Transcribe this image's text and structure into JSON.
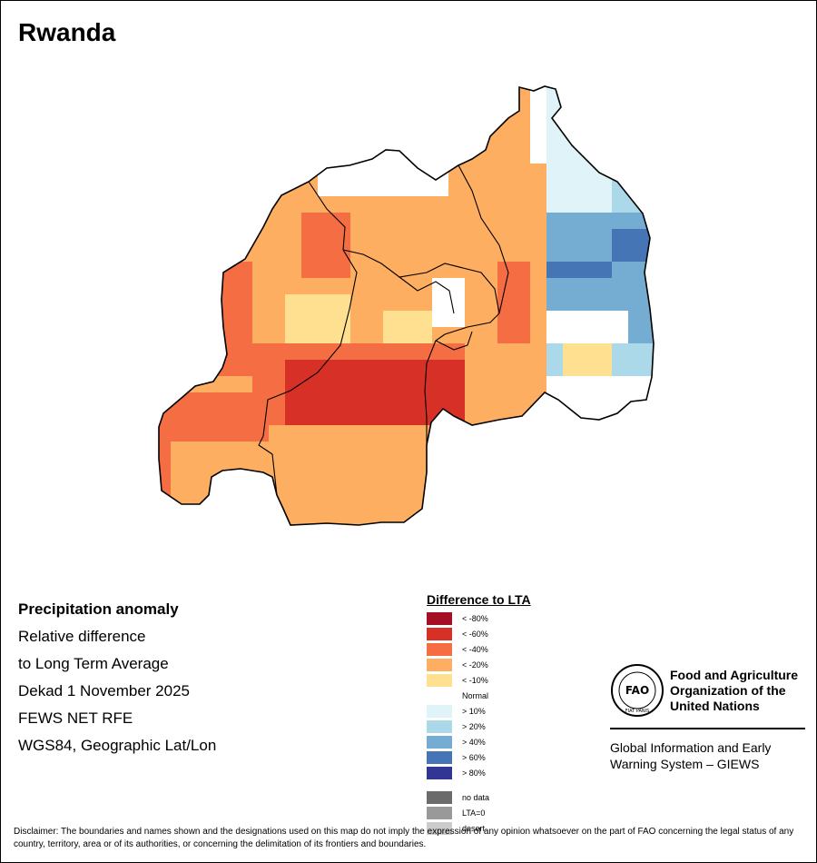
{
  "title": "Rwanda",
  "info": {
    "line1": "Precipitation anomaly",
    "line2": "Relative difference",
    "line3": "to Long Term Average",
    "line4": "Dekad 1 November 2025",
    "line5": "FEWS NET RFE",
    "line6": "WGS84, Geographic Lat/Lon"
  },
  "legend": {
    "title": "Difference to LTA",
    "items": [
      {
        "label": "< -80%",
        "color": "#a50f26"
      },
      {
        "label": "< -60%",
        "color": "#d73027"
      },
      {
        "label": "< -40%",
        "color": "#f46d43"
      },
      {
        "label": "< -20%",
        "color": "#fdae61"
      },
      {
        "label": "< -10%",
        "color": "#fee090"
      },
      {
        "label": "Normal",
        "color": "#ffffff"
      },
      {
        "label": "> 10%",
        "color": "#e0f3f8"
      },
      {
        "label": "> 20%",
        "color": "#abd9e9"
      },
      {
        "label": "> 40%",
        "color": "#74add1"
      },
      {
        "label": "> 60%",
        "color": "#4575b4"
      },
      {
        "label": "> 80%",
        "color": "#313695"
      }
    ],
    "extra": [
      {
        "label": "no data",
        "color": "#6b6b6b"
      },
      {
        "label": "LTA=0",
        "color": "#999999"
      },
      {
        "label": "desert",
        "color": "#cccccc"
      }
    ]
  },
  "logo": {
    "acronym": "FAO",
    "motto": "FIAT PANIS",
    "org_line1": "Food and Agriculture",
    "org_line2": "Organization of the",
    "org_line3": "United Nations",
    "giews_line1": "Global Information and Early",
    "giews_line2": "Warning System – GIEWS"
  },
  "disclaimer": "Disclaimer: The boundaries and names shown and the designations used on this map do not imply the expression of any opinion whatsoever on the part of FAO concerning the legal status of any country, territory, area or of its authorities, or concerning the delimitation of its frontiers and boundaries.",
  "map": {
    "palette": {
      "1": "#d73027",
      "2": "#f46d43",
      "3": "#fdae61",
      "4": "#fee090",
      "5": "#ffffff",
      "6": "#e0f3f8",
      "7": "#abd9e9",
      "8": "#74add1",
      "9": "#4575b4"
    },
    "grid": [
      "...................................",
      "...................................",
      "...................................",
      "...................................",
      "...................................",
      "...................................",
      "...................................",
      "...................................",
      "...................................",
      "...................................",
      "...................................",
      "...................................",
      "...................................",
      "...................................",
      "...................................",
      "...................................",
      "...................................",
      "...................................",
      "...................................",
      "...................................",
      "...................................",
      "...................................",
      "...................................",
      "...................................",
      "...................................",
      "...................................",
      "...................................",
      "...................................",
      "...................................",
      "...................................",
      "...................................",
      "...................................",
      "...................................",
      "...................................",
      "...................................",
      "..................................."
    ]
  }
}
